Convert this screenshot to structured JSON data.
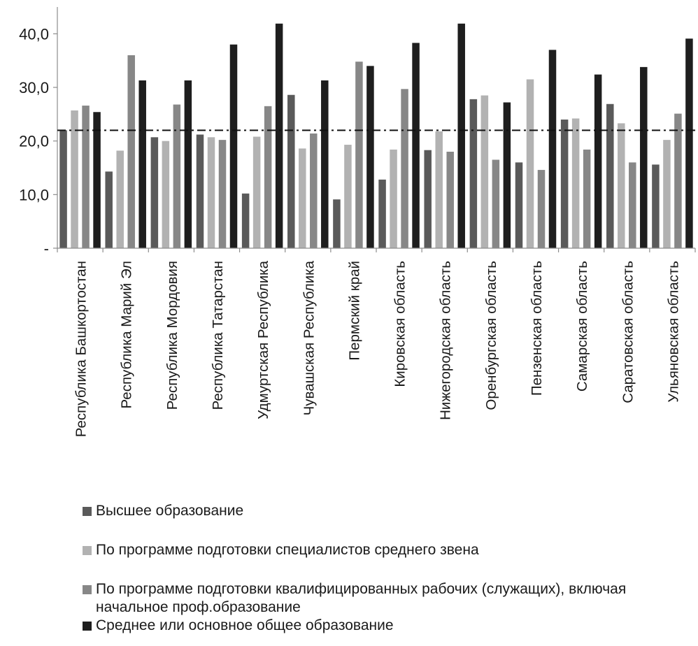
{
  "chart_data": {
    "type": "bar",
    "title": "",
    "xlabel": "",
    "ylabel": "",
    "ylim": [
      0,
      45
    ],
    "yticks": [
      0,
      10,
      20,
      30,
      40
    ],
    "ytick_labels": [
      "-",
      "10,0",
      "20,0",
      "30,0",
      "40,0"
    ],
    "grid": false,
    "legend_position": "bottom",
    "reference_line": {
      "value": 22,
      "style": "dash-dot"
    },
    "categories": [
      "Республика Башкортостан",
      "Республика Марий Эл",
      "Республика Мордовия",
      "Республика Татарстан",
      "Удмуртская Республика",
      "Чувашская Республика",
      "Пермский край",
      "Кировская область",
      "Нижегородская область",
      "Оренбургская область",
      "Пензенская область",
      "Самарская область",
      "Саратовская область",
      "Ульяновская область"
    ],
    "series": [
      {
        "name": "Высшее образование",
        "color": "#5a5a5a",
        "values": [
          22.0,
          14.3,
          20.7,
          21.2,
          10.2,
          28.6,
          9.1,
          12.8,
          18.3,
          27.8,
          16.0,
          24.0,
          26.9,
          15.6
        ]
      },
      {
        "name": "По программе подготовки специалистов среднего звена",
        "color": "#b2b2b2",
        "values": [
          25.7,
          18.2,
          20.0,
          20.7,
          20.8,
          18.6,
          19.3,
          18.4,
          21.8,
          28.5,
          31.5,
          24.2,
          23.3,
          20.2
        ]
      },
      {
        "name": "По программе подготовки квалифицированных рабочих (служащих), включая начальное проф.образование",
        "color": "#878787",
        "values": [
          26.6,
          36.0,
          26.8,
          20.2,
          26.5,
          21.4,
          34.8,
          29.7,
          18.0,
          16.5,
          14.6,
          18.4,
          16.0,
          25.1
        ]
      },
      {
        "name": "Среднее или основное общее образование",
        "color": "#1e1e1e",
        "values": [
          25.4,
          31.3,
          31.3,
          38.0,
          41.9,
          31.3,
          34.0,
          38.3,
          41.9,
          27.2,
          37.0,
          32.4,
          33.8,
          39.1
        ]
      }
    ]
  }
}
